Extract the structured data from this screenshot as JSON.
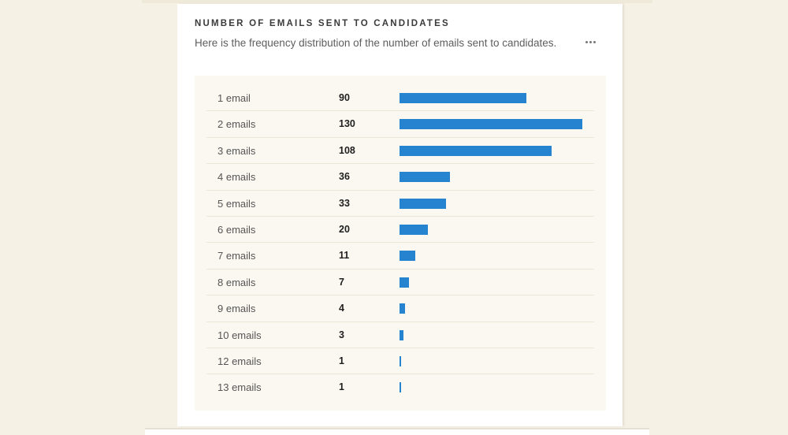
{
  "card": {
    "title": "NUMBER OF EMAILS SENT TO CANDIDATES",
    "description": "Here is the frequency distribution of the number of emails sent to candidates.",
    "menu_icon": "more-horizontal-icon"
  },
  "colors": {
    "bar": "#2683d0",
    "page_background": "#f6f1e5",
    "panel_background": "#fbf8f1",
    "card_background": "#ffffff"
  },
  "rows": [
    {
      "label": "1 email",
      "value": "90"
    },
    {
      "label": "2 emails",
      "value": "130"
    },
    {
      "label": "3 emails",
      "value": "108"
    },
    {
      "label": "4 emails",
      "value": "36"
    },
    {
      "label": "5 emails",
      "value": "33"
    },
    {
      "label": "6 emails",
      "value": "20"
    },
    {
      "label": "7 emails",
      "value": "11"
    },
    {
      "label": "8 emails",
      "value": "7"
    },
    {
      "label": "9 emails",
      "value": "4"
    },
    {
      "label": "10 emails",
      "value": "3"
    },
    {
      "label": "12 emails",
      "value": "1"
    },
    {
      "label": "13 emails",
      "value": "1"
    }
  ],
  "chart_data": {
    "type": "bar",
    "orientation": "horizontal",
    "title": "NUMBER OF EMAILS SENT TO CANDIDATES",
    "subtitle": "Here is the frequency distribution of the number of emails sent to candidates.",
    "categories": [
      "1 email",
      "2 emails",
      "3 emails",
      "4 emails",
      "5 emails",
      "6 emails",
      "7 emails",
      "8 emails",
      "9 emails",
      "10 emails",
      "12 emails",
      "13 emails"
    ],
    "values": [
      90,
      130,
      108,
      36,
      33,
      20,
      11,
      7,
      4,
      3,
      1,
      1
    ],
    "xlabel": "",
    "ylabel": "",
    "xlim": [
      0,
      130
    ],
    "grid": false,
    "legend": null,
    "data_labels": true,
    "series_color": "#2683d0"
  }
}
